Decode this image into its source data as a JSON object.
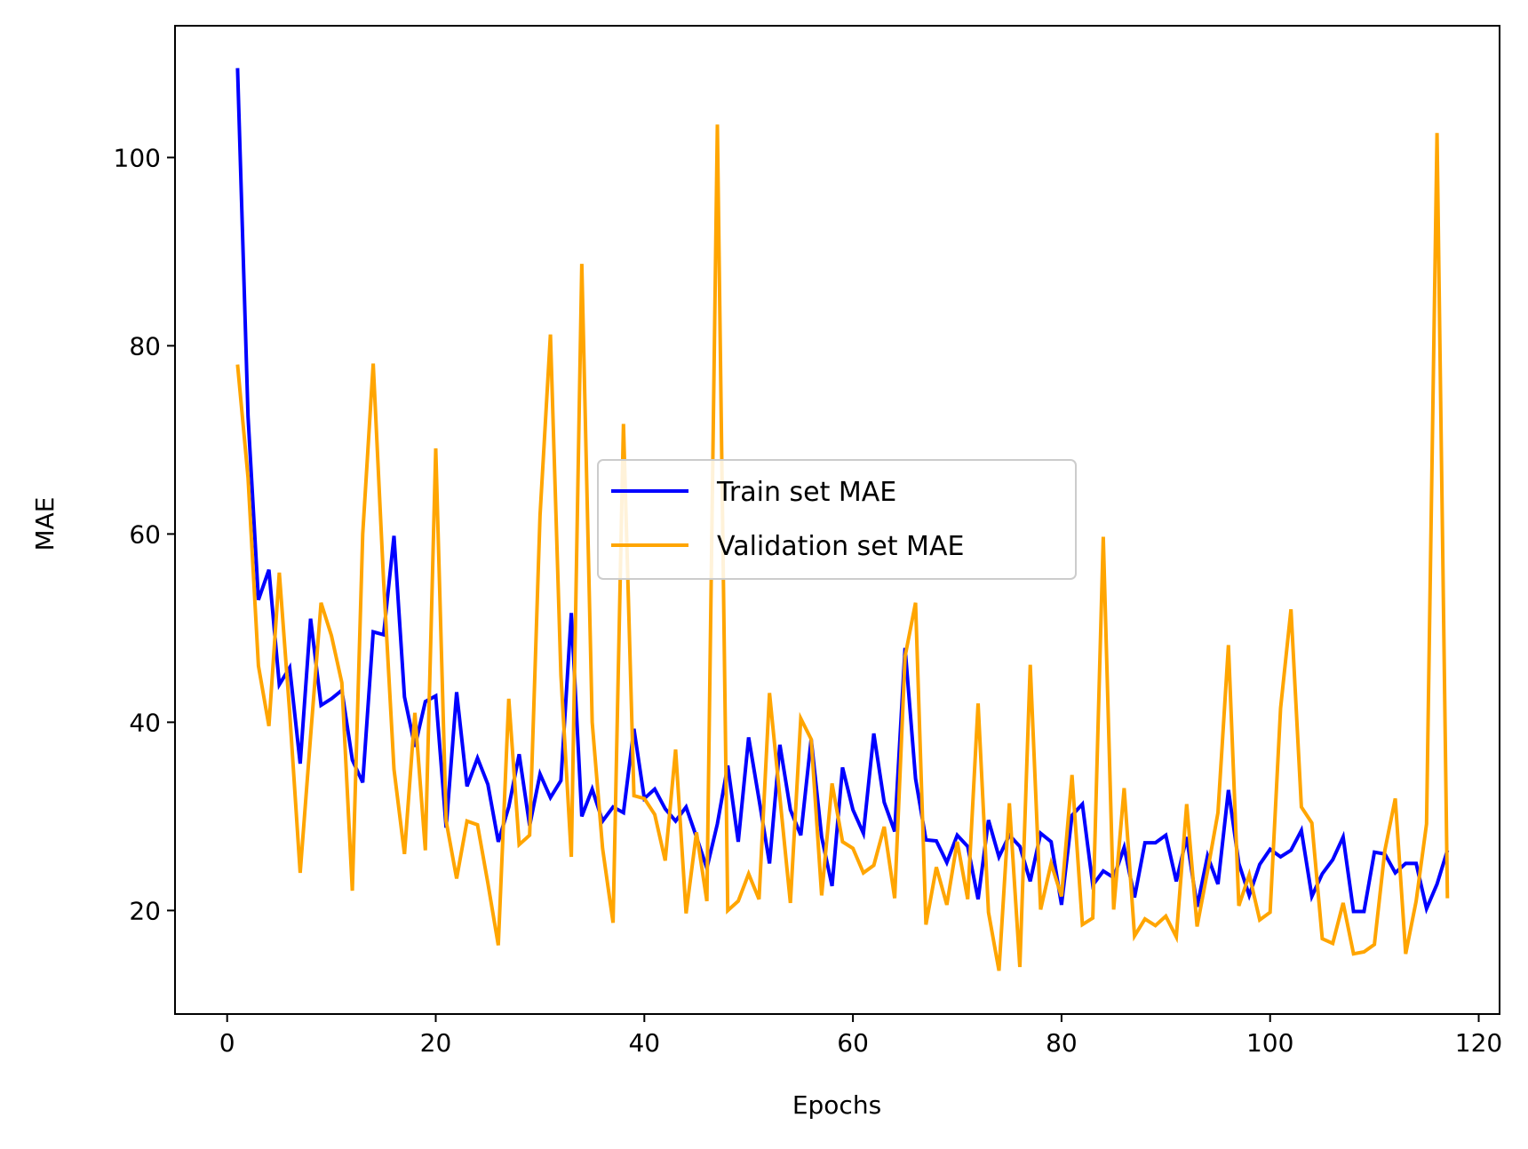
{
  "chart_data": {
    "type": "line",
    "title": "",
    "xlabel": "Epochs",
    "ylabel": "MAE",
    "xlim": [
      -5,
      122
    ],
    "ylim": [
      9,
      114
    ],
    "x_ticks": [
      0,
      20,
      40,
      60,
      80,
      100,
      120
    ],
    "y_ticks": [
      20,
      40,
      60,
      80,
      100
    ],
    "grid": false,
    "legend_position": "center",
    "x": [
      1,
      2,
      3,
      4,
      5,
      6,
      7,
      8,
      9,
      10,
      11,
      12,
      13,
      14,
      15,
      16,
      17,
      18,
      19,
      20,
      21,
      22,
      23,
      24,
      25,
      26,
      27,
      28,
      29,
      30,
      31,
      32,
      33,
      34,
      35,
      36,
      37,
      38,
      39,
      40,
      41,
      42,
      43,
      44,
      45,
      46,
      47,
      48,
      49,
      50,
      51,
      52,
      53,
      54,
      55,
      56,
      57,
      58,
      59,
      60,
      61,
      62,
      63,
      64,
      65,
      66,
      67,
      68,
      69,
      70,
      71,
      72,
      73,
      74,
      75,
      76,
      77,
      78,
      79,
      80,
      81,
      82,
      83,
      84,
      85,
      86,
      87,
      88,
      89,
      90,
      91,
      92,
      93,
      94,
      95,
      96,
      97,
      98,
      99,
      100,
      101,
      102,
      103,
      104,
      105,
      106,
      107,
      108,
      109,
      110,
      111,
      112,
      113,
      114,
      115,
      116,
      117
    ],
    "series": [
      {
        "name": "Train set MAE",
        "color": "#0000ff",
        "values": [
          109.5,
          72.5,
          53.0,
          56.2,
          44.0,
          45.8,
          35.6,
          51.0,
          41.8,
          42.5,
          43.4,
          36.0,
          33.6,
          49.6,
          49.3,
          59.8,
          42.7,
          37.4,
          42.2,
          42.8,
          28.8,
          43.2,
          33.2,
          36.2,
          33.4,
          27.3,
          31.0,
          36.6,
          29.0,
          34.5,
          32.0,
          33.8,
          51.6,
          30.0,
          32.9,
          29.5,
          31.0,
          30.4,
          39.3,
          31.9,
          32.9,
          30.8,
          29.5,
          31.0,
          27.8,
          24.5,
          29.2,
          35.4,
          27.3,
          38.4,
          31.8,
          25.0,
          37.6,
          30.7,
          28.0,
          38.2,
          27.8,
          22.6,
          35.2,
          30.7,
          28.2,
          38.8,
          31.5,
          28.4,
          47.9,
          34.0,
          27.5,
          27.4,
          25.1,
          28.0,
          26.8,
          21.2,
          29.6,
          25.7,
          28.0,
          26.8,
          23.1,
          28.2,
          27.3,
          20.6,
          30.1,
          31.3,
          22.7,
          24.2,
          23.5,
          26.7,
          21.4,
          27.2,
          27.2,
          28.0,
          23.1,
          27.8,
          20.4,
          25.8,
          22.8,
          32.8,
          25.0,
          21.6,
          24.9,
          26.5,
          25.7,
          26.4,
          28.5,
          21.5,
          23.9,
          25.4,
          27.8,
          19.9,
          19.9,
          26.2,
          26.0,
          24.0,
          25.0,
          25.0,
          20.2,
          22.8,
          26.4
        ]
      },
      {
        "name": "Validation set MAE",
        "color": "#ffa500",
        "values": [
          78.0,
          66.0,
          46.0,
          39.6,
          55.9,
          41.0,
          24.0,
          38.5,
          52.7,
          49.2,
          44.2,
          22.1,
          60.0,
          78.1,
          55.0,
          35.0,
          26.0,
          41.0,
          26.4,
          69.1,
          29.5,
          23.4,
          29.5,
          29.1,
          22.9,
          16.3,
          42.5,
          27.0,
          28.0,
          62.0,
          81.2,
          45.0,
          25.7,
          88.7,
          40.0,
          26.6,
          18.7,
          71.7,
          32.2,
          31.9,
          30.2,
          25.3,
          37.1,
          19.7,
          28.3,
          21.0,
          103.5,
          20.0,
          21.0,
          23.9,
          21.2,
          43.1,
          32.0,
          20.8,
          40.4,
          38.2,
          21.6,
          33.5,
          27.3,
          26.6,
          24.0,
          24.8,
          28.9,
          21.3,
          47.0,
          52.7,
          18.5,
          24.6,
          20.6,
          27.3,
          21.2,
          42.0,
          19.8,
          13.6,
          31.4,
          14.0,
          46.1,
          20.1,
          25.0,
          21.5,
          34.4,
          18.5,
          19.2,
          59.7,
          20.1,
          33.0,
          17.3,
          19.1,
          18.4,
          19.4,
          17.2,
          31.3,
          18.3,
          24.2,
          30.4,
          48.2,
          20.5,
          23.8,
          19.0,
          19.8,
          41.5,
          52.0,
          31.0,
          29.3,
          17.0,
          16.5,
          20.8,
          15.4,
          15.6,
          16.4,
          26.4,
          31.9,
          15.4,
          21.0,
          29.2,
          102.6,
          21.3
        ]
      }
    ]
  }
}
